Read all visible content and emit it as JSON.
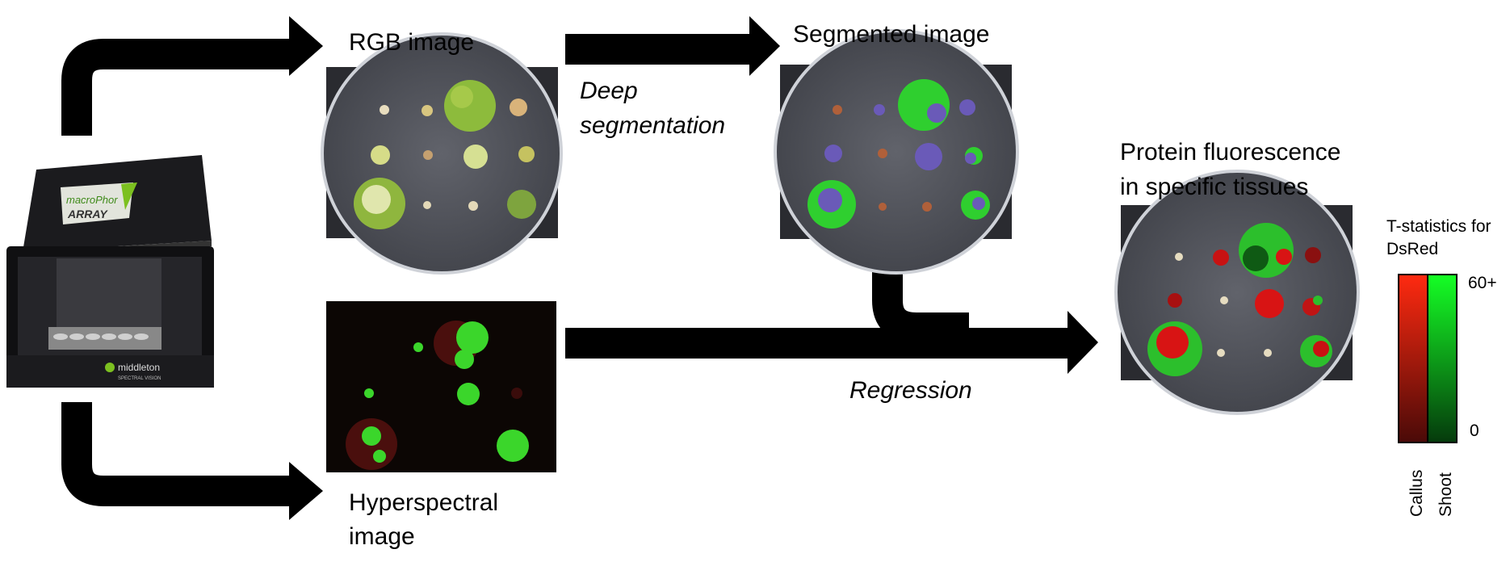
{
  "device": {
    "logo_text": "macroPhor",
    "array_text": "ARRAY",
    "brand": "middleton",
    "brand_sub": "SPECTRAL VISION"
  },
  "labels": {
    "rgb": "RGB image",
    "segmented": "Segmented image",
    "deep_1": "Deep",
    "deep_2": "segmentation",
    "hyper_1": "Hyperspectral",
    "hyper_2": "image",
    "regression": "Regression",
    "protein_1": "Protein fluorescence",
    "protein_2": "in specific tissues"
  },
  "legend": {
    "title_1": "T-statistics for",
    "title_2": "DsRed",
    "max": "60+",
    "min": "0",
    "col_callus": "Callus",
    "col_shoot": "Shoot",
    "callus_top": "#ff2a10",
    "callus_bottom": "#4a0a08",
    "shoot_top": "#15ff25",
    "shoot_bottom": "#053a0c"
  },
  "colors": {
    "arrow": "#000000",
    "dish_bg": "#4e5058",
    "plant_green": "#7fb03a",
    "seg_green": "#2fcf2f",
    "seg_purple": "#6a5ab8",
    "fluor_red": "#d81414"
  }
}
